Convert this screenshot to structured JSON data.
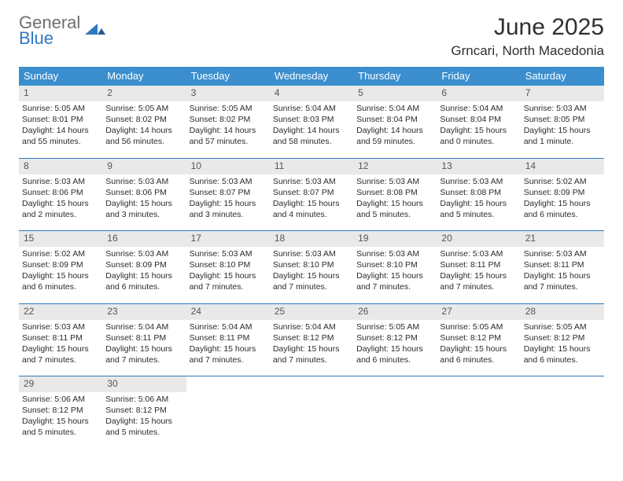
{
  "brand": {
    "line1": "General",
    "line2": "Blue"
  },
  "title": "June 2025",
  "location": "Grncari, North Macedonia",
  "colors": {
    "accent": "#3b8fce",
    "divider": "#2f79bf",
    "daynum_bg": "#e9e9e9",
    "text": "#2b2b2b"
  },
  "dow": [
    "Sunday",
    "Monday",
    "Tuesday",
    "Wednesday",
    "Thursday",
    "Friday",
    "Saturday"
  ],
  "weeks": [
    [
      {
        "n": "1",
        "sr": "Sunrise: 5:05 AM",
        "ss": "Sunset: 8:01 PM",
        "d1": "Daylight: 14 hours",
        "d2": "and 55 minutes."
      },
      {
        "n": "2",
        "sr": "Sunrise: 5:05 AM",
        "ss": "Sunset: 8:02 PM",
        "d1": "Daylight: 14 hours",
        "d2": "and 56 minutes."
      },
      {
        "n": "3",
        "sr": "Sunrise: 5:05 AM",
        "ss": "Sunset: 8:02 PM",
        "d1": "Daylight: 14 hours",
        "d2": "and 57 minutes."
      },
      {
        "n": "4",
        "sr": "Sunrise: 5:04 AM",
        "ss": "Sunset: 8:03 PM",
        "d1": "Daylight: 14 hours",
        "d2": "and 58 minutes."
      },
      {
        "n": "5",
        "sr": "Sunrise: 5:04 AM",
        "ss": "Sunset: 8:04 PM",
        "d1": "Daylight: 14 hours",
        "d2": "and 59 minutes."
      },
      {
        "n": "6",
        "sr": "Sunrise: 5:04 AM",
        "ss": "Sunset: 8:04 PM",
        "d1": "Daylight: 15 hours",
        "d2": "and 0 minutes."
      },
      {
        "n": "7",
        "sr": "Sunrise: 5:03 AM",
        "ss": "Sunset: 8:05 PM",
        "d1": "Daylight: 15 hours",
        "d2": "and 1 minute."
      }
    ],
    [
      {
        "n": "8",
        "sr": "Sunrise: 5:03 AM",
        "ss": "Sunset: 8:06 PM",
        "d1": "Daylight: 15 hours",
        "d2": "and 2 minutes."
      },
      {
        "n": "9",
        "sr": "Sunrise: 5:03 AM",
        "ss": "Sunset: 8:06 PM",
        "d1": "Daylight: 15 hours",
        "d2": "and 3 minutes."
      },
      {
        "n": "10",
        "sr": "Sunrise: 5:03 AM",
        "ss": "Sunset: 8:07 PM",
        "d1": "Daylight: 15 hours",
        "d2": "and 3 minutes."
      },
      {
        "n": "11",
        "sr": "Sunrise: 5:03 AM",
        "ss": "Sunset: 8:07 PM",
        "d1": "Daylight: 15 hours",
        "d2": "and 4 minutes."
      },
      {
        "n": "12",
        "sr": "Sunrise: 5:03 AM",
        "ss": "Sunset: 8:08 PM",
        "d1": "Daylight: 15 hours",
        "d2": "and 5 minutes."
      },
      {
        "n": "13",
        "sr": "Sunrise: 5:03 AM",
        "ss": "Sunset: 8:08 PM",
        "d1": "Daylight: 15 hours",
        "d2": "and 5 minutes."
      },
      {
        "n": "14",
        "sr": "Sunrise: 5:02 AM",
        "ss": "Sunset: 8:09 PM",
        "d1": "Daylight: 15 hours",
        "d2": "and 6 minutes."
      }
    ],
    [
      {
        "n": "15",
        "sr": "Sunrise: 5:02 AM",
        "ss": "Sunset: 8:09 PM",
        "d1": "Daylight: 15 hours",
        "d2": "and 6 minutes."
      },
      {
        "n": "16",
        "sr": "Sunrise: 5:03 AM",
        "ss": "Sunset: 8:09 PM",
        "d1": "Daylight: 15 hours",
        "d2": "and 6 minutes."
      },
      {
        "n": "17",
        "sr": "Sunrise: 5:03 AM",
        "ss": "Sunset: 8:10 PM",
        "d1": "Daylight: 15 hours",
        "d2": "and 7 minutes."
      },
      {
        "n": "18",
        "sr": "Sunrise: 5:03 AM",
        "ss": "Sunset: 8:10 PM",
        "d1": "Daylight: 15 hours",
        "d2": "and 7 minutes."
      },
      {
        "n": "19",
        "sr": "Sunrise: 5:03 AM",
        "ss": "Sunset: 8:10 PM",
        "d1": "Daylight: 15 hours",
        "d2": "and 7 minutes."
      },
      {
        "n": "20",
        "sr": "Sunrise: 5:03 AM",
        "ss": "Sunset: 8:11 PM",
        "d1": "Daylight: 15 hours",
        "d2": "and 7 minutes."
      },
      {
        "n": "21",
        "sr": "Sunrise: 5:03 AM",
        "ss": "Sunset: 8:11 PM",
        "d1": "Daylight: 15 hours",
        "d2": "and 7 minutes."
      }
    ],
    [
      {
        "n": "22",
        "sr": "Sunrise: 5:03 AM",
        "ss": "Sunset: 8:11 PM",
        "d1": "Daylight: 15 hours",
        "d2": "and 7 minutes."
      },
      {
        "n": "23",
        "sr": "Sunrise: 5:04 AM",
        "ss": "Sunset: 8:11 PM",
        "d1": "Daylight: 15 hours",
        "d2": "and 7 minutes."
      },
      {
        "n": "24",
        "sr": "Sunrise: 5:04 AM",
        "ss": "Sunset: 8:11 PM",
        "d1": "Daylight: 15 hours",
        "d2": "and 7 minutes."
      },
      {
        "n": "25",
        "sr": "Sunrise: 5:04 AM",
        "ss": "Sunset: 8:12 PM",
        "d1": "Daylight: 15 hours",
        "d2": "and 7 minutes."
      },
      {
        "n": "26",
        "sr": "Sunrise: 5:05 AM",
        "ss": "Sunset: 8:12 PM",
        "d1": "Daylight: 15 hours",
        "d2": "and 6 minutes."
      },
      {
        "n": "27",
        "sr": "Sunrise: 5:05 AM",
        "ss": "Sunset: 8:12 PM",
        "d1": "Daylight: 15 hours",
        "d2": "and 6 minutes."
      },
      {
        "n": "28",
        "sr": "Sunrise: 5:05 AM",
        "ss": "Sunset: 8:12 PM",
        "d1": "Daylight: 15 hours",
        "d2": "and 6 minutes."
      }
    ],
    [
      {
        "n": "29",
        "sr": "Sunrise: 5:06 AM",
        "ss": "Sunset: 8:12 PM",
        "d1": "Daylight: 15 hours",
        "d2": "and 5 minutes."
      },
      {
        "n": "30",
        "sr": "Sunrise: 5:06 AM",
        "ss": "Sunset: 8:12 PM",
        "d1": "Daylight: 15 hours",
        "d2": "and 5 minutes."
      },
      null,
      null,
      null,
      null,
      null
    ]
  ]
}
